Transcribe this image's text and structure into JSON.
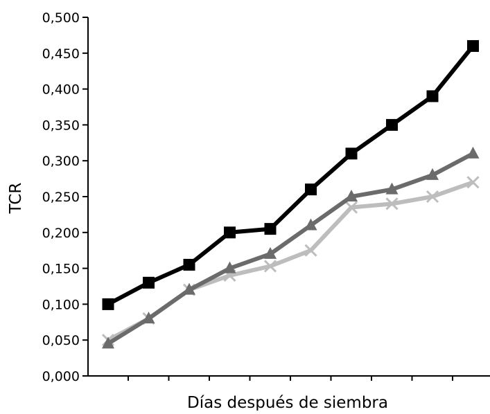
{
  "chart_data": {
    "type": "line",
    "title": "",
    "xlabel": "Días después de siembra",
    "ylabel": "TCR",
    "ylim": [
      0,
      0.5
    ],
    "yticks": [
      "0,000",
      "0,050",
      "0,100",
      "0,150",
      "0,200",
      "0,250",
      "0,300",
      "0,350",
      "0,400",
      "0,450",
      "0,500"
    ],
    "x": [
      1,
      2,
      3,
      4,
      5,
      6,
      7,
      8,
      9,
      10
    ],
    "grid": false,
    "legend": "none",
    "series": [
      {
        "marker": "square",
        "color": "#000000",
        "values": [
          0.1,
          0.13,
          0.155,
          0.2,
          0.205,
          0.26,
          0.31,
          0.35,
          0.39,
          0.46
        ]
      },
      {
        "marker": "triangle",
        "color": "#6b6b6b",
        "values": [
          0.045,
          0.08,
          0.12,
          0.15,
          0.17,
          0.21,
          0.25,
          0.26,
          0.28,
          0.31
        ]
      },
      {
        "marker": "x",
        "color": "#bdbdbd",
        "values": [
          0.05,
          0.08,
          0.12,
          0.14,
          0.153,
          0.175,
          0.235,
          0.24,
          0.25,
          0.27
        ]
      }
    ]
  }
}
